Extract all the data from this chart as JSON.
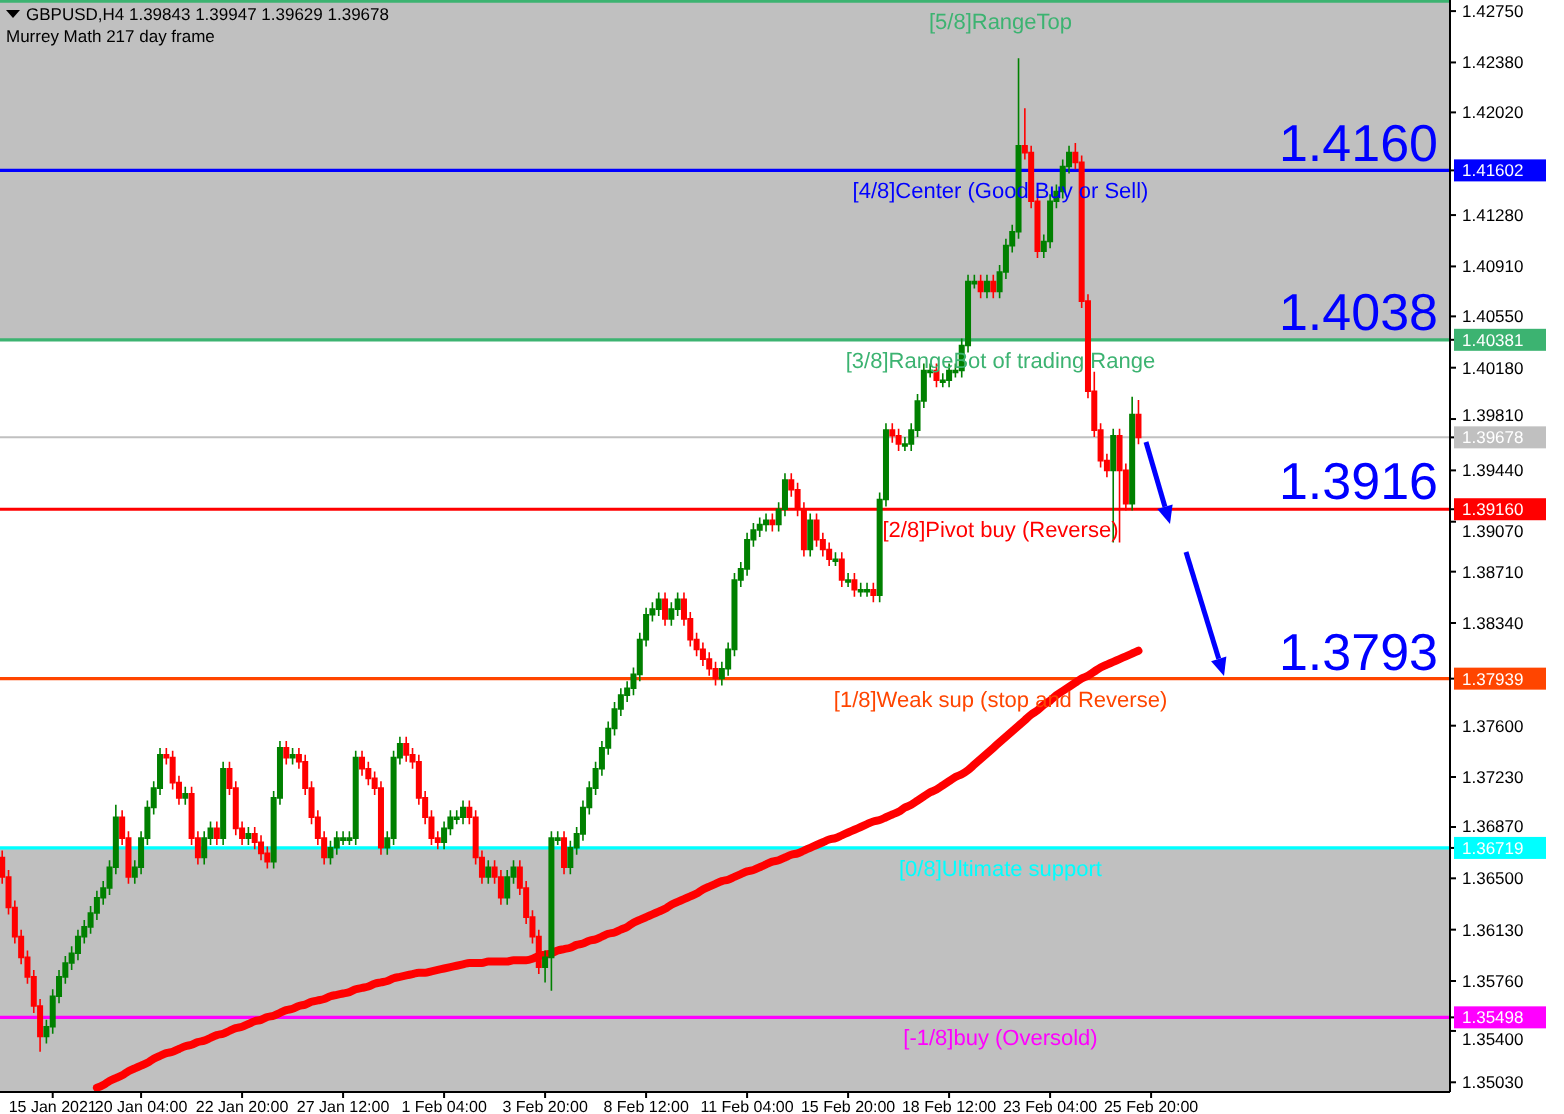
{
  "chart_data": {
    "type": "candlestick",
    "title": "GBPUSD,H4  1.39843 1.39947 1.39629 1.39678",
    "subtitle": "Murrey Math 217 day frame",
    "categories": [
      null,
      null,
      null,
      null,
      null,
      null,
      null,
      null,
      "15 Jan 2021",
      null,
      null,
      null,
      null,
      null,
      null,
      null,
      null,
      null,
      null,
      null,
      null,
      null,
      "20 Jan 04:00",
      null,
      null,
      null,
      null,
      null,
      null,
      null,
      null,
      null,
      null,
      null,
      null,
      null,
      null,
      null,
      "22 Jan 20:00",
      null,
      null,
      null,
      null,
      null,
      null,
      null,
      null,
      null,
      null,
      null,
      null,
      null,
      null,
      null,
      "27 Jan 12:00",
      null,
      null,
      null,
      null,
      null,
      null,
      null,
      null,
      null,
      null,
      null,
      null,
      null,
      null,
      null,
      "1 Feb 04:00",
      null,
      null,
      null,
      null,
      null,
      null,
      null,
      null,
      null,
      null,
      null,
      null,
      null,
      null,
      null,
      "3 Feb 20:00",
      null,
      null,
      null,
      null,
      null,
      null,
      null,
      null,
      null,
      null,
      null,
      null,
      null,
      null,
      null,
      "8 Feb 12:00",
      null,
      null,
      null,
      null,
      null,
      null,
      null,
      null,
      null,
      null,
      null,
      null,
      null,
      null,
      null,
      "11 Feb 04:00",
      null,
      null,
      null,
      null,
      null,
      null,
      null,
      null,
      null,
      null,
      null,
      null,
      null,
      null,
      null,
      "15 Feb 20:00",
      null,
      null,
      null,
      null,
      null,
      null,
      null,
      null,
      null,
      null,
      null,
      null,
      null,
      null,
      null,
      "18 Feb 12:00",
      null,
      null,
      null,
      null,
      null,
      null,
      null,
      null,
      null,
      null,
      null,
      null,
      null,
      null,
      null,
      "23 Feb 04:00",
      null,
      null,
      null,
      null,
      null,
      null,
      null,
      null,
      null,
      null,
      null,
      null,
      null,
      null,
      null,
      "25 Feb 20:00",
      null,
      null,
      null,
      null,
      null,
      null,
      null,
      null,
      null,
      null,
      null,
      null,
      null,
      null,
      null,
      null,
      null,
      null,
      null,
      null,
      null,
      null,
      null,
      null,
      null,
      null,
      null,
      null,
      null,
      null,
      null,
      null,
      null,
      null,
      null,
      null,
      null,
      null,
      null,
      null,
      null,
      null,
      null,
      null,
      null,
      null,
      null
    ],
    "ohlc": [
      [
        1.3665,
        1.367,
        1.3646,
        1.3651
      ],
      [
        1.3651,
        1.3656,
        1.3624,
        1.3629
      ],
      [
        1.3629,
        1.3634,
        1.3603,
        1.3608
      ],
      [
        1.3608,
        1.3613,
        1.3588,
        1.3593
      ],
      [
        1.3593,
        1.3598,
        1.3574,
        1.3579
      ],
      [
        1.3579,
        1.3584,
        1.3553,
        1.3558
      ],
      [
        1.3558,
        1.3563,
        1.3525,
        1.3536
      ],
      [
        1.3536,
        1.3548,
        1.3531,
        1.3543
      ],
      [
        1.3543,
        1.357,
        1.3538,
        1.3565
      ],
      [
        1.3565,
        1.3584,
        1.356,
        1.3579
      ],
      [
        1.3579,
        1.3594,
        1.3574,
        1.3589
      ],
      [
        1.3589,
        1.3601,
        1.3584,
        1.3596
      ],
      [
        1.3596,
        1.3613,
        1.3591,
        1.3608
      ],
      [
        1.3608,
        1.362,
        1.3603,
        1.3615
      ],
      [
        1.3615,
        1.363,
        1.361,
        1.3625
      ],
      [
        1.3625,
        1.3641,
        1.362,
        1.3636
      ],
      [
        1.3636,
        1.3648,
        1.3631,
        1.3643
      ],
      [
        1.3643,
        1.3663,
        1.3638,
        1.3658
      ],
      [
        1.3658,
        1.3703,
        1.3653,
        1.3694
      ],
      [
        1.3694,
        1.3699,
        1.3674,
        1.3679
      ],
      [
        1.3679,
        1.3684,
        1.3646,
        1.3651
      ],
      [
        1.3651,
        1.3663,
        1.3646,
        1.3658
      ],
      [
        1.3658,
        1.3684,
        1.3653,
        1.3679
      ],
      [
        1.3679,
        1.3706,
        1.3674,
        1.3701
      ],
      [
        1.3701,
        1.372,
        1.3696,
        1.3715
      ],
      [
        1.3715,
        1.3744,
        1.371,
        1.3739
      ],
      [
        1.3739,
        1.3744,
        1.3732,
        1.3737
      ],
      [
        1.3737,
        1.3742,
        1.3714,
        1.3719
      ],
      [
        1.3719,
        1.3724,
        1.3703,
        1.3708
      ],
      [
        1.3708,
        1.3716,
        1.3703,
        1.3711
      ],
      [
        1.3711,
        1.3716,
        1.3674,
        1.3679
      ],
      [
        1.3679,
        1.3684,
        1.366,
        1.3665
      ],
      [
        1.3665,
        1.3684,
        1.366,
        1.3679
      ],
      [
        1.3679,
        1.3691,
        1.3674,
        1.3686
      ],
      [
        1.3686,
        1.3691,
        1.3674,
        1.3679
      ],
      [
        1.3679,
        1.3734,
        1.3674,
        1.3729
      ],
      [
        1.3729,
        1.3734,
        1.371,
        1.3715
      ],
      [
        1.3715,
        1.372,
        1.3681,
        1.3686
      ],
      [
        1.3686,
        1.3691,
        1.3674,
        1.3679
      ],
      [
        1.3679,
        1.3687,
        1.3674,
        1.3682
      ],
      [
        1.3682,
        1.3687,
        1.3671,
        1.3676
      ],
      [
        1.3676,
        1.3681,
        1.3663,
        1.3668
      ],
      [
        1.3668,
        1.3673,
        1.3657,
        1.3662
      ],
      [
        1.3662,
        1.3713,
        1.3657,
        1.3708
      ],
      [
        1.3708,
        1.3749,
        1.3703,
        1.3744
      ],
      [
        1.3744,
        1.3749,
        1.3732,
        1.3737
      ],
      [
        1.3737,
        1.3744,
        1.3732,
        1.3739
      ],
      [
        1.3739,
        1.3744,
        1.3729,
        1.3734
      ],
      [
        1.3734,
        1.3739,
        1.371,
        1.3715
      ],
      [
        1.3715,
        1.372,
        1.3689,
        1.3694
      ],
      [
        1.3694,
        1.3699,
        1.3674,
        1.3679
      ],
      [
        1.3679,
        1.3684,
        1.366,
        1.3665
      ],
      [
        1.3665,
        1.3677,
        1.366,
        1.3672
      ],
      [
        1.3672,
        1.3684,
        1.3667,
        1.3679
      ],
      [
        1.3679,
        1.3684,
        1.3674,
        1.3679
      ],
      [
        1.3679,
        1.3684,
        1.3674,
        1.3679
      ],
      [
        1.3679,
        1.3742,
        1.3674,
        1.3737
      ],
      [
        1.3737,
        1.3742,
        1.3724,
        1.3729
      ],
      [
        1.3729,
        1.3734,
        1.3717,
        1.3722
      ],
      [
        1.3722,
        1.3727,
        1.371,
        1.3715
      ],
      [
        1.3715,
        1.372,
        1.3667,
        1.3672
      ],
      [
        1.3672,
        1.3684,
        1.3667,
        1.3679
      ],
      [
        1.3679,
        1.3742,
        1.3674,
        1.3737
      ],
      [
        1.3737,
        1.3752,
        1.3732,
        1.3747
      ],
      [
        1.3747,
        1.3752,
        1.3734,
        1.3739
      ],
      [
        1.3739,
        1.3744,
        1.3729,
        1.3734
      ],
      [
        1.3734,
        1.3739,
        1.3703,
        1.3708
      ],
      [
        1.3708,
        1.3713,
        1.3689,
        1.3694
      ],
      [
        1.3694,
        1.3699,
        1.3674,
        1.3679
      ],
      [
        1.3679,
        1.3684,
        1.3671,
        1.3676
      ],
      [
        1.3676,
        1.3691,
        1.3671,
        1.3686
      ],
      [
        1.3686,
        1.3699,
        1.3681,
        1.3694
      ],
      [
        1.3694,
        1.3699,
        1.3689,
        1.3694
      ],
      [
        1.3694,
        1.3706,
        1.3689,
        1.3701
      ],
      [
        1.3701,
        1.3706,
        1.3689,
        1.3694
      ],
      [
        1.3694,
        1.3699,
        1.366,
        1.3665
      ],
      [
        1.3665,
        1.367,
        1.3646,
        1.3651
      ],
      [
        1.3651,
        1.3663,
        1.3646,
        1.3658
      ],
      [
        1.3658,
        1.3663,
        1.3646,
        1.3651
      ],
      [
        1.3651,
        1.3656,
        1.3631,
        1.3636
      ],
      [
        1.3636,
        1.3656,
        1.3631,
        1.3651
      ],
      [
        1.3651,
        1.3663,
        1.3646,
        1.3658
      ],
      [
        1.3658,
        1.3663,
        1.3638,
        1.3643
      ],
      [
        1.3643,
        1.3648,
        1.3617,
        1.3622
      ],
      [
        1.3622,
        1.3627,
        1.3603,
        1.3608
      ],
      [
        1.3608,
        1.3613,
        1.3581,
        1.3586
      ],
      [
        1.3586,
        1.3598,
        1.3575,
        1.3593
      ],
      [
        1.3593,
        1.3684,
        1.3569,
        1.3679
      ],
      [
        1.3679,
        1.3684,
        1.3674,
        1.3679
      ],
      [
        1.3679,
        1.3684,
        1.3653,
        1.3658
      ],
      [
        1.3658,
        1.3677,
        1.3653,
        1.3672
      ],
      [
        1.3672,
        1.3687,
        1.3667,
        1.3682
      ],
      [
        1.3682,
        1.3706,
        1.3677,
        1.3701
      ],
      [
        1.3701,
        1.372,
        1.3696,
        1.3715
      ],
      [
        1.3715,
        1.3734,
        1.371,
        1.3729
      ],
      [
        1.3729,
        1.3749,
        1.3724,
        1.3744
      ],
      [
        1.3744,
        1.3763,
        1.3739,
        1.3758
      ],
      [
        1.3758,
        1.3777,
        1.3753,
        1.3772
      ],
      [
        1.3772,
        1.3787,
        1.3767,
        1.3782
      ],
      [
        1.3782,
        1.3792,
        1.3777,
        1.3787
      ],
      [
        1.3787,
        1.3802,
        1.3782,
        1.3797
      ],
      [
        1.3797,
        1.3827,
        1.3792,
        1.3822
      ],
      [
        1.3822,
        1.3845,
        1.3817,
        1.384
      ],
      [
        1.384,
        1.3849,
        1.3835,
        1.3844
      ],
      [
        1.3844,
        1.3856,
        1.3839,
        1.3851
      ],
      [
        1.3851,
        1.3856,
        1.3832,
        1.3837
      ],
      [
        1.3837,
        1.3849,
        1.3832,
        1.3844
      ],
      [
        1.3844,
        1.3856,
        1.3839,
        1.3851
      ],
      [
        1.3851,
        1.3856,
        1.3832,
        1.3837
      ],
      [
        1.3837,
        1.3842,
        1.3817,
        1.3822
      ],
      [
        1.3822,
        1.3827,
        1.381,
        1.3815
      ],
      [
        1.3815,
        1.382,
        1.3803,
        1.3808
      ],
      [
        1.3808,
        1.3813,
        1.3796,
        1.3801
      ],
      [
        1.3801,
        1.3806,
        1.3789,
        1.3794
      ],
      [
        1.3794,
        1.3806,
        1.3789,
        1.3801
      ],
      [
        1.3801,
        1.382,
        1.3796,
        1.3815
      ],
      [
        1.3815,
        1.387,
        1.381,
        1.3865
      ],
      [
        1.3865,
        1.3878,
        1.386,
        1.3873
      ],
      [
        1.3873,
        1.3899,
        1.3868,
        1.3894
      ],
      [
        1.3894,
        1.3906,
        1.3889,
        1.3901
      ],
      [
        1.3901,
        1.391,
        1.3896,
        1.3905
      ],
      [
        1.3905,
        1.3913,
        1.39,
        1.3908
      ],
      [
        1.3908,
        1.3913,
        1.39,
        1.3905
      ],
      [
        1.3905,
        1.3921,
        1.39,
        1.3916
      ],
      [
        1.3916,
        1.3942,
        1.3911,
        1.3937
      ],
      [
        1.3937,
        1.3942,
        1.3925,
        1.393
      ],
      [
        1.393,
        1.3935,
        1.3911,
        1.3916
      ],
      [
        1.3916,
        1.3921,
        1.3882,
        1.3887
      ],
      [
        1.3887,
        1.3913,
        1.3882,
        1.3908
      ],
      [
        1.3908,
        1.3913,
        1.3889,
        1.3894
      ],
      [
        1.3894,
        1.3899,
        1.3882,
        1.3887
      ],
      [
        1.3887,
        1.3892,
        1.3875,
        1.388
      ],
      [
        1.388,
        1.3885,
        1.3875,
        1.388
      ],
      [
        1.388,
        1.3885,
        1.386,
        1.3865
      ],
      [
        1.3865,
        1.387,
        1.386,
        1.3865
      ],
      [
        1.3865,
        1.387,
        1.3853,
        1.3858
      ],
      [
        1.3858,
        1.3863,
        1.3853,
        1.3858
      ],
      [
        1.3858,
        1.3863,
        1.3853,
        1.3858
      ],
      [
        1.3858,
        1.3863,
        1.3849,
        1.3854
      ],
      [
        1.3854,
        1.3928,
        1.3849,
        1.3923
      ],
      [
        1.3923,
        1.3978,
        1.3918,
        1.3973
      ],
      [
        1.3973,
        1.3978,
        1.3964,
        1.3969
      ],
      [
        1.3969,
        1.3974,
        1.3958,
        1.3963
      ],
      [
        1.3963,
        1.3968,
        1.3958,
        1.3963
      ],
      [
        1.3963,
        1.3978,
        1.3958,
        1.3973
      ],
      [
        1.3973,
        1.3999,
        1.3968,
        1.3994
      ],
      [
        1.3994,
        1.4021,
        1.3989,
        1.4016
      ],
      [
        1.4016,
        1.4021,
        1.4011,
        1.4016
      ],
      [
        1.4016,
        1.4021,
        1.4004,
        1.4009
      ],
      [
        1.4009,
        1.4014,
        1.4004,
        1.4009
      ],
      [
        1.4009,
        1.4021,
        1.4004,
        1.4016
      ],
      [
        1.4016,
        1.4021,
        1.4011,
        1.4016
      ],
      [
        1.4016,
        1.4039,
        1.4011,
        1.4034
      ],
      [
        1.4034,
        1.4085,
        1.4029,
        1.408
      ],
      [
        1.408,
        1.4085,
        1.4075,
        1.408
      ],
      [
        1.408,
        1.4085,
        1.4068,
        1.4073
      ],
      [
        1.4073,
        1.4085,
        1.4068,
        1.408
      ],
      [
        1.408,
        1.4085,
        1.4068,
        1.4073
      ],
      [
        1.4073,
        1.4092,
        1.4068,
        1.4087
      ],
      [
        1.4087,
        1.4111,
        1.4082,
        1.4106
      ],
      [
        1.4106,
        1.4121,
        1.4101,
        1.4116
      ],
      [
        1.4116,
        1.4241,
        1.4111,
        1.4178
      ],
      [
        1.4178,
        1.4205,
        1.4168,
        1.4173
      ],
      [
        1.4173,
        1.4178,
        1.4133,
        1.4138
      ],
      [
        1.4138,
        1.4143,
        1.4097,
        1.4102
      ],
      [
        1.4102,
        1.4114,
        1.4097,
        1.4109
      ],
      [
        1.4109,
        1.4143,
        1.4104,
        1.4138
      ],
      [
        1.4138,
        1.415,
        1.4133,
        1.4145
      ],
      [
        1.4145,
        1.4168,
        1.414,
        1.4163
      ],
      [
        1.4163,
        1.4178,
        1.4158,
        1.4173
      ],
      [
        1.4173,
        1.418,
        1.4161,
        1.4166
      ],
      [
        1.4166,
        1.4171,
        1.4061,
        1.4066
      ],
      [
        1.4066,
        1.4071,
        1.3996,
        1.4001
      ],
      [
        1.4001,
        1.4015,
        1.3968,
        1.3973
      ],
      [
        1.3973,
        1.3978,
        1.3946,
        1.3951
      ],
      [
        1.3951,
        1.3956,
        1.3939,
        1.3944
      ],
      [
        1.3944,
        1.3974,
        1.3892,
        1.3969
      ],
      [
        1.3969,
        1.3974,
        1.3892,
        1.3944
      ],
      [
        1.3944,
        1.3949,
        1.3915,
        1.392
      ],
      [
        1.392,
        1.3997,
        1.3915,
        1.39843
      ],
      [
        1.39843,
        1.39947,
        1.39629,
        1.39678
      ],
      null,
      null,
      null,
      null,
      null,
      null,
      null,
      null,
      null,
      null,
      null,
      null,
      null,
      null,
      null,
      null,
      null,
      null,
      null,
      null,
      null,
      null,
      null,
      null,
      null,
      null,
      null,
      null,
      null,
      null,
      null,
      null,
      null,
      null,
      null,
      null,
      null,
      null,
      null,
      null,
      null,
      null,
      null,
      null,
      null,
      null,
      null,
      null,
      null
    ],
    "series": [
      {
        "type": "line",
        "color": "#ff0000",
        "values": [
          null,
          null,
          null,
          null,
          null,
          null,
          null,
          null,
          null,
          null,
          null,
          null,
          null,
          null,
          null,
          1.3499,
          1.3501,
          1.3504,
          1.3506,
          1.3508,
          1.3511,
          1.3513,
          1.3515,
          1.3517,
          1.352,
          1.3522,
          1.3524,
          1.3525,
          1.3527,
          1.3529,
          1.353,
          1.3532,
          1.3533,
          1.3535,
          1.3537,
          1.3538,
          1.354,
          1.3542,
          1.3543,
          1.3545,
          1.3547,
          1.3548,
          1.355,
          1.3551,
          1.3553,
          1.3555,
          1.3556,
          1.3558,
          1.3559,
          1.3561,
          1.3562,
          1.3563,
          1.3565,
          1.3566,
          1.3567,
          1.3568,
          1.357,
          1.3571,
          1.3572,
          1.3574,
          1.3575,
          1.3576,
          1.3578,
          1.3579,
          1.358,
          1.3581,
          1.3582,
          1.3582,
          1.3583,
          1.3584,
          1.3585,
          1.3586,
          1.3587,
          1.3588,
          1.3589,
          1.3589,
          1.3589,
          1.359,
          1.359,
          1.359,
          1.359,
          1.3591,
          1.3591,
          1.3591,
          1.3592,
          1.3594,
          1.3595,
          1.3596,
          1.3598,
          1.3599,
          1.36,
          1.3602,
          1.3603,
          1.3605,
          1.3606,
          1.3608,
          1.361,
          1.3611,
          1.3613,
          1.3615,
          1.3618,
          1.362,
          1.3622,
          1.3624,
          1.3626,
          1.3628,
          1.3631,
          1.3633,
          1.3635,
          1.3637,
          1.3639,
          1.3642,
          1.3644,
          1.3646,
          1.3648,
          1.3649,
          1.3651,
          1.3653,
          1.3655,
          1.3656,
          1.3658,
          1.366,
          1.3662,
          1.3663,
          1.3665,
          1.3667,
          1.3668,
          1.367,
          1.3672,
          1.3674,
          1.3676,
          1.3678,
          1.3679,
          1.3681,
          1.3683,
          1.3685,
          1.3687,
          1.3689,
          1.3691,
          1.3692,
          1.3694,
          1.3696,
          1.3698,
          1.3701,
          1.3703,
          1.3706,
          1.3709,
          1.3712,
          1.3714,
          1.3717,
          1.372,
          1.3723,
          1.3725,
          1.3728,
          1.3732,
          1.3736,
          1.374,
          1.3744,
          1.3748,
          1.3752,
          1.3756,
          1.376,
          1.3764,
          1.3768,
          1.3771,
          1.3775,
          1.3778,
          1.3782,
          1.3785,
          1.3788,
          1.3791,
          1.3794,
          1.3796,
          1.3799,
          1.3802,
          1.3804,
          1.3806,
          1.3808,
          1.381,
          1.3812,
          1.3814,
          null,
          null,
          null,
          null,
          null,
          null,
          null,
          null,
          null,
          null,
          null,
          null,
          null,
          null,
          null,
          null,
          null,
          null,
          null,
          null,
          null,
          null,
          null,
          null,
          null,
          null,
          null,
          null,
          null,
          null,
          null,
          null,
          null,
          null,
          null,
          null,
          null,
          null,
          null,
          null,
          null,
          null,
          null,
          null,
          null,
          null,
          null,
          null,
          null
        ]
      }
    ],
    "ylim": [
      1.3496,
      1.4283
    ],
    "yticks": [
      {
        "value": 1.4275,
        "label": "1.42750"
      },
      {
        "value": 1.4238,
        "label": "1.42380"
      },
      {
        "value": 1.4202,
        "label": "1.42020"
      },
      {
        "value": 1.41602,
        "label": "1.41602"
      },
      {
        "value": 1.4128,
        "label": "1.41280"
      },
      {
        "value": 1.4091,
        "label": "1.40910"
      },
      {
        "value": 1.4055,
        "label": "1.40550"
      },
      {
        "value": 1.40381,
        "label": "1.40381"
      },
      {
        "value": 1.4018,
        "label": "1.40180"
      },
      {
        "value": 1.3981,
        "label": "1.39810"
      },
      {
        "value": 1.39678,
        "label": "1.39678"
      },
      {
        "value": 1.3944,
        "label": "1.39440"
      },
      {
        "value": 1.3916,
        "label": "1.39160"
      },
      {
        "value": 1.3907,
        "label": "1.39070"
      },
      {
        "value": 1.3871,
        "label": "1.38710"
      },
      {
        "value": 1.3834,
        "label": "1.38340"
      },
      {
        "value": 1.37939,
        "label": "1.37939"
      },
      {
        "value": 1.376,
        "label": "1.37600"
      },
      {
        "value": 1.3723,
        "label": "1.37230"
      },
      {
        "value": 1.3687,
        "label": "1.36870"
      },
      {
        "value": 1.36719,
        "label": "1.36719"
      },
      {
        "value": 1.365,
        "label": "1.36500"
      },
      {
        "value": 1.3613,
        "label": "1.36130"
      },
      {
        "value": 1.3576,
        "label": "1.35760"
      },
      {
        "value": 1.35498,
        "label": "1.35498"
      },
      {
        "value": 1.354,
        "label": "1.35400"
      },
      {
        "value": 1.3503,
        "label": "1.35030"
      }
    ],
    "bands": [
      {
        "axis": "y",
        "from": 1.40381,
        "to": 1.4283,
        "color": "#c0c0c0"
      },
      {
        "axis": "y",
        "from": 1.3496,
        "to": 1.36719,
        "color": "#c0c0c0"
      }
    ],
    "ref_lines": [
      {
        "axis": "y",
        "value": 1.42822,
        "label": "[5/8]RangeTop",
        "color": "#3cb371"
      },
      {
        "axis": "y",
        "value": 1.41602,
        "label": "[4/8]Center (Good Buy or Sell)",
        "color": "#0000ff"
      },
      {
        "axis": "y",
        "value": 1.40381,
        "label": "[3/8]RangeBot of trading Range",
        "color": "#3cb371"
      },
      {
        "axis": "y",
        "value": 1.39678,
        "label": null,
        "color": "#c0c0c0"
      },
      {
        "axis": "y",
        "value": 1.3916,
        "label": "[2/8]Pivot buy (Reverse)",
        "color": "#ff0000"
      },
      {
        "axis": "y",
        "value": 1.37939,
        "label": "[1/8]Weak sup (stop and Reverse)",
        "color": "#ff4500"
      },
      {
        "axis": "y",
        "value": 1.36719,
        "label": "[0/8]Ultimate support",
        "color": "#00ffff"
      },
      {
        "axis": "y",
        "value": 1.35498,
        "label": "[-1/8]buy (Oversold)",
        "color": "#ff00ff"
      }
    ],
    "annotations": [
      {
        "text": "1.4160",
        "y": 1.416
      },
      {
        "text": "1.4038",
        "y": 1.4038
      },
      {
        "text": "1.3916",
        "y": 1.3916
      },
      {
        "text": "1.3793",
        "y": 1.3793
      }
    ]
  }
}
